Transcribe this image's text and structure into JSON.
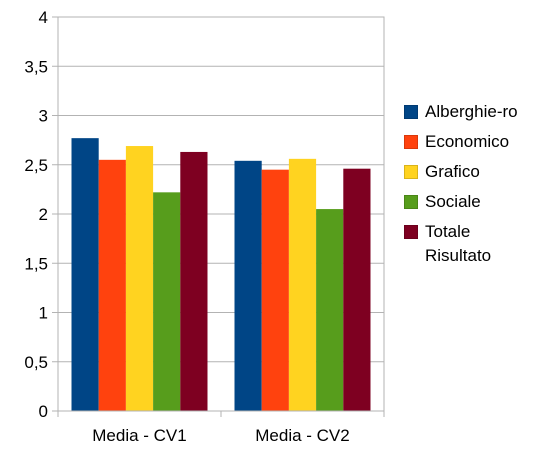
{
  "chart_data": {
    "type": "bar",
    "categories": [
      "Media - CV1",
      "Media - CV2"
    ],
    "series": [
      {
        "name": "Alberghie-ro",
        "values": [
          2.77,
          2.54
        ],
        "color": "#004586"
      },
      {
        "name": "Economico",
        "values": [
          2.55,
          2.45
        ],
        "color": "#ff420e"
      },
      {
        "name": "Grafico",
        "values": [
          2.69,
          2.56
        ],
        "color": "#ffd320"
      },
      {
        "name": "Sociale",
        "values": [
          2.22,
          2.05
        ],
        "color": "#579d1c"
      },
      {
        "name": "Totale Risultato",
        "values": [
          2.63,
          2.46
        ],
        "color": "#7e0021"
      }
    ],
    "yticks": [
      "0",
      "0,5",
      "1",
      "1,5",
      "2",
      "2,5",
      "3",
      "3,5",
      "4"
    ],
    "ylim": [
      0,
      4
    ],
    "grid": true,
    "legend_position": "right",
    "title": "",
    "xlabel": "",
    "ylabel": ""
  }
}
